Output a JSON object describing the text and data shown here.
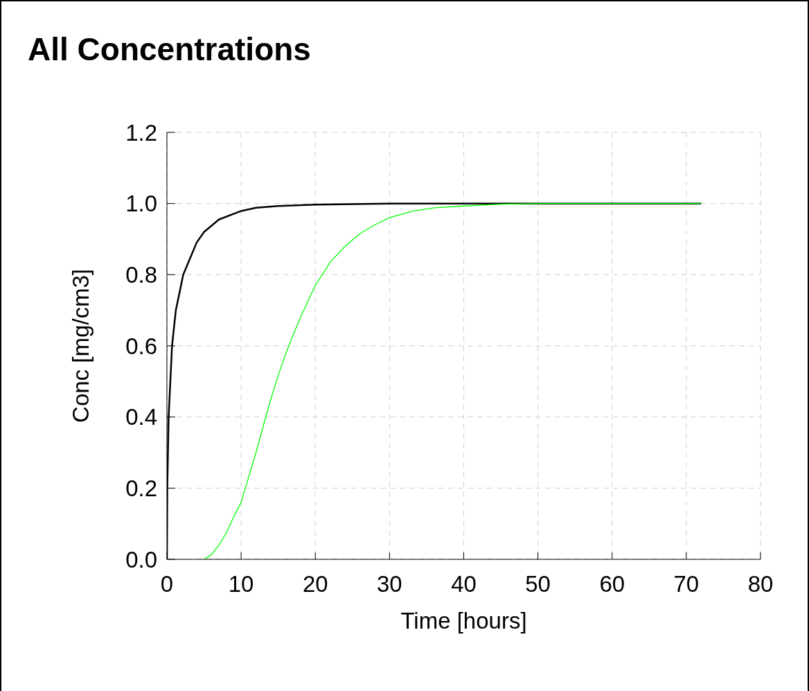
{
  "chart_data": {
    "type": "line",
    "title": "All Concentrations",
    "xlabel": "Time [hours]",
    "ylabel": "Conc [mg/cm3]",
    "xlim": [
      0,
      80
    ],
    "xticks": [
      0,
      10,
      20,
      30,
      40,
      50,
      60,
      70,
      80
    ],
    "ylim": [
      0,
      1.2
    ],
    "yticks": [
      {
        "value": 0,
        "label": "0.0"
      },
      {
        "value": 0.2,
        "label": "0.2"
      },
      {
        "value": 0.4,
        "label": "0.4"
      },
      {
        "value": 0.6,
        "label": "0.6"
      },
      {
        "value": 0.8,
        "label": "0.8"
      },
      {
        "value": 1,
        "label": "1.0"
      },
      {
        "value": 1.2,
        "label": "1.2"
      }
    ],
    "grid": true,
    "marker": "none",
    "line_style": "solid",
    "series": [
      {
        "color": "#000000",
        "x": [
          0,
          0.05,
          0.23,
          0.69,
          1.2,
          2.2,
          3,
          4,
          5,
          7,
          10,
          12,
          15,
          20,
          30,
          50,
          72
        ],
        "values": [
          0,
          0.2,
          0.4,
          0.6,
          0.7,
          0.8,
          0.84,
          0.89,
          0.92,
          0.955,
          0.979,
          0.988,
          0.993,
          0.997,
          1,
          1,
          1
        ]
      },
      {
        "color": "#00ff00",
        "x": [
          5,
          6,
          7,
          8,
          9,
          10,
          11,
          12,
          13,
          14,
          15,
          16,
          17,
          18,
          19,
          20,
          22,
          24,
          26,
          28,
          30,
          33,
          36,
          40,
          45,
          50,
          72
        ],
        "values": [
          0,
          0.013,
          0.04,
          0.074,
          0.12,
          0.16,
          0.23,
          0.3,
          0.376,
          0.45,
          0.517,
          0.577,
          0.63,
          0.68,
          0.725,
          0.77,
          0.835,
          0.88,
          0.915,
          0.94,
          0.96,
          0.978,
          0.988,
          0.993,
          0.998,
          1,
          1
        ]
      }
    ]
  }
}
